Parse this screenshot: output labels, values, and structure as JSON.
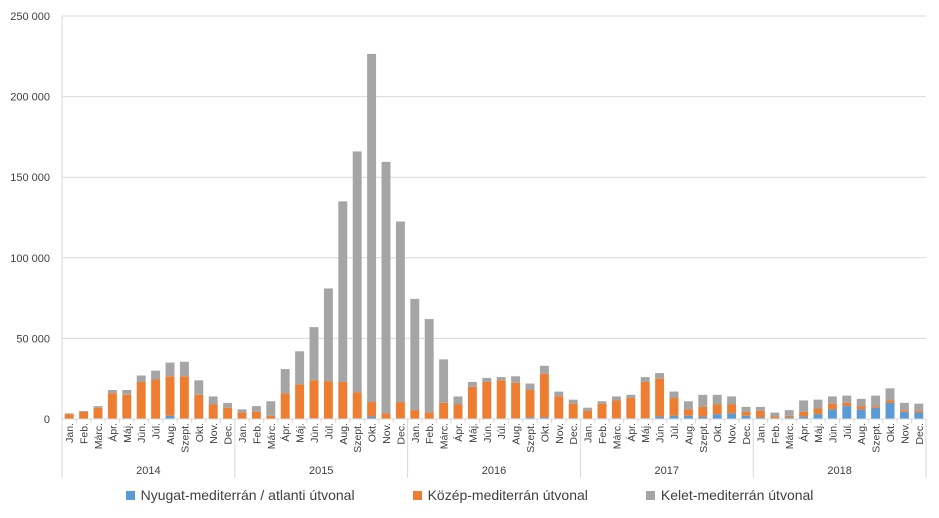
{
  "chart_data": {
    "type": "bar",
    "stacked": true,
    "title": "",
    "xlabel": "",
    "ylabel": "",
    "ylim": [
      0,
      250000
    ],
    "yticks": [
      0,
      50000,
      100000,
      150000,
      200000,
      250000
    ],
    "ytick_labels": [
      "0",
      "50 000",
      "100 000",
      "150 000",
      "200 000",
      "250 000"
    ],
    "grid": true,
    "legend_position": "bottom",
    "years": [
      "2014",
      "2015",
      "2016",
      "2017",
      "2018"
    ],
    "months": [
      "Jan.",
      "Feb.",
      "Márc.",
      "Ápr.",
      "Máj.",
      "Jún.",
      "Júl.",
      "Aug.",
      "Szept.",
      "Okt.",
      "Nov.",
      "Dec."
    ],
    "series": [
      {
        "name": "Nyugat-mediterrán / atlanti útvonal",
        "color": "#5b9bd5",
        "values": [
          0,
          0,
          500,
          0,
          500,
          0,
          0,
          2000,
          0,
          0,
          0,
          0,
          0,
          0,
          0,
          0,
          0,
          500,
          0,
          0,
          500,
          1500,
          0,
          500,
          0,
          0,
          0,
          0,
          0,
          0,
          0,
          500,
          1000,
          1000,
          500,
          500,
          0,
          500,
          500,
          500,
          500,
          1500,
          2000,
          2000,
          1500,
          3000,
          3500,
          2000,
          1000,
          500,
          1000,
          1500,
          3000,
          6000,
          8000,
          6000,
          7000,
          10000,
          4500,
          4000
        ]
      },
      {
        "name": "Közép-mediterrán útvonal",
        "color": "#ed7d31",
        "values": [
          3000,
          4500,
          6500,
          16000,
          14500,
          23000,
          24500,
          24500,
          26500,
          15000,
          9000,
          7000,
          4000,
          4500,
          2000,
          16000,
          21500,
          23500,
          23500,
          23000,
          16000,
          9000,
          3500,
          10000,
          5500,
          4000,
          10000,
          9000,
          20000,
          23000,
          24000,
          22000,
          17000,
          27000,
          13500,
          9000,
          5000,
          9000,
          11000,
          12500,
          22500,
          23500,
          11000,
          4000,
          6000,
          6000,
          5500,
          2500,
          4000,
          1000,
          1000,
          3000,
          3500,
          3500,
          2000,
          2000,
          1000,
          1500,
          1000,
          1000
        ]
      },
      {
        "name": "Kelet-mediterrán útvonal",
        "color": "#a5a5a5",
        "values": [
          500,
          500,
          1000,
          2000,
          3000,
          4000,
          5500,
          8500,
          9000,
          9000,
          5000,
          3000,
          2000,
          3500,
          9000,
          15000,
          20500,
          33000,
          57500,
          112000,
          149500,
          216000,
          156000,
          112000,
          69000,
          58000,
          27000,
          5000,
          3000,
          2500,
          2000,
          4000,
          4000,
          5000,
          3000,
          2500,
          2000,
          1500,
          2500,
          2000,
          3000,
          3500,
          4000,
          5000,
          7500,
          6000,
          5000,
          3000,
          2500,
          2500,
          3500,
          7000,
          5500,
          4500,
          4500,
          4500,
          6500,
          7500,
          4500,
          4500
        ]
      }
    ]
  }
}
